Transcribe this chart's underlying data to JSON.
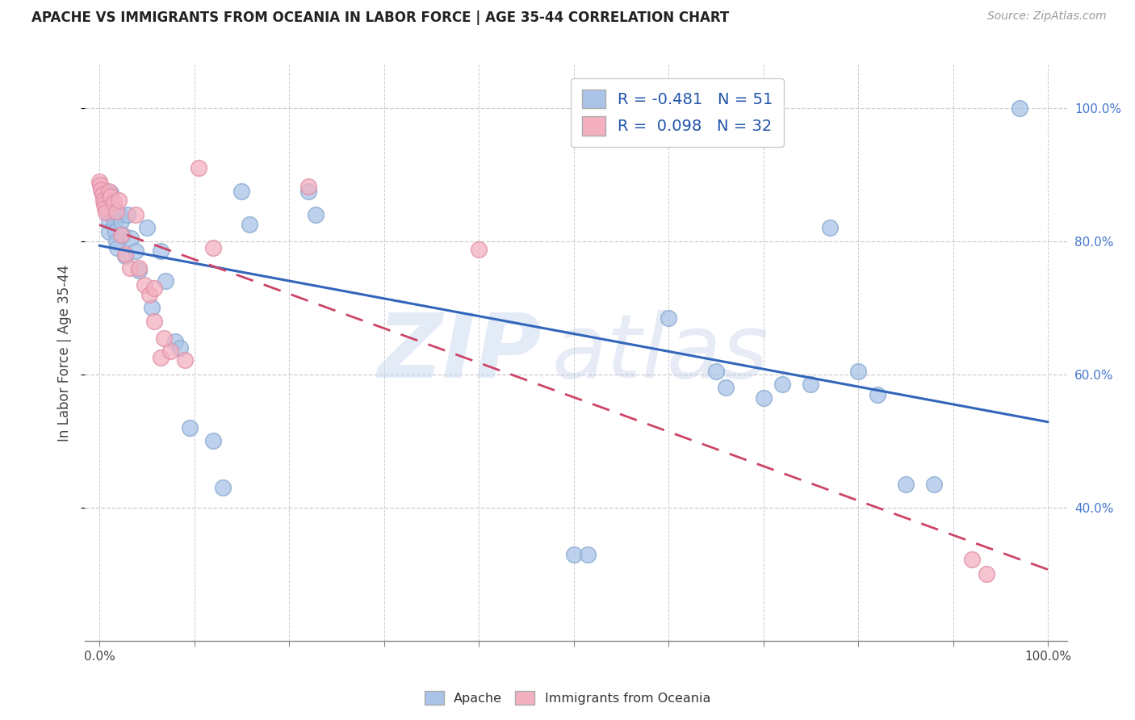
{
  "title": "APACHE VS IMMIGRANTS FROM OCEANIA IN LABOR FORCE | AGE 35-44 CORRELATION CHART",
  "source": "Source: ZipAtlas.com",
  "ylabel": "In Labor Force | Age 35-44",
  "legend_R1": "R = -0.481",
  "legend_N1": "N = 51",
  "legend_R2": "R =  0.098",
  "legend_N2": "N = 32",
  "legend_label1": "Apache",
  "legend_label2": "Immigrants from Oceania",
  "apache_color": "#aac4e8",
  "apache_edge_color": "#88aad0",
  "oceania_color": "#f4b0c0",
  "oceania_edge_color": "#e090a8",
  "apache_line_color": "#3366bb",
  "oceania_line_color": "#cc4466",
  "watermark_zip": "ZIP",
  "watermark_atlas": "atlas",
  "xlim": [
    -0.015,
    1.02
  ],
  "ylim": [
    0.2,
    1.065
  ],
  "x_ticks": [
    0.0,
    0.1,
    0.2,
    0.3,
    0.4,
    0.5,
    0.6,
    0.7,
    0.8,
    0.9,
    1.0
  ],
  "y_ticks": [
    0.4,
    0.6,
    0.8,
    1.0
  ],
  "apache_x": [
    0.003,
    0.005,
    0.006,
    0.007,
    0.008,
    0.009,
    0.01,
    0.01,
    0.012,
    0.013,
    0.014,
    0.015,
    0.016,
    0.017,
    0.018,
    0.019,
    0.021,
    0.023,
    0.025,
    0.027,
    0.03,
    0.033,
    0.038,
    0.042,
    0.05,
    0.055,
    0.065,
    0.07,
    0.08,
    0.085,
    0.095,
    0.12,
    0.13,
    0.15,
    0.158,
    0.22,
    0.228,
    0.5,
    0.515,
    0.6,
    0.65,
    0.66,
    0.7,
    0.72,
    0.75,
    0.77,
    0.8,
    0.82,
    0.85,
    0.88,
    0.97
  ],
  "apache_y": [
    0.875,
    0.875,
    0.875,
    0.86,
    0.855,
    0.845,
    0.83,
    0.815,
    0.872,
    0.862,
    0.85,
    0.84,
    0.828,
    0.815,
    0.8,
    0.79,
    0.84,
    0.83,
    0.81,
    0.778,
    0.84,
    0.805,
    0.785,
    0.756,
    0.82,
    0.7,
    0.785,
    0.74,
    0.65,
    0.64,
    0.52,
    0.5,
    0.43,
    0.875,
    0.825,
    0.875,
    0.84,
    0.33,
    0.33,
    0.685,
    0.605,
    0.58,
    0.565,
    0.585,
    0.585,
    0.82,
    0.605,
    0.57,
    0.435,
    0.435,
    1.0
  ],
  "oceania_x": [
    0.0,
    0.001,
    0.002,
    0.003,
    0.004,
    0.005,
    0.006,
    0.007,
    0.01,
    0.012,
    0.015,
    0.018,
    0.02,
    0.023,
    0.027,
    0.032,
    0.038,
    0.042,
    0.048,
    0.053,
    0.058,
    0.065,
    0.075,
    0.09,
    0.105,
    0.12,
    0.22,
    0.4,
    0.92,
    0.935,
    0.058,
    0.068
  ],
  "oceania_y": [
    0.89,
    0.885,
    0.878,
    0.87,
    0.862,
    0.856,
    0.85,
    0.843,
    0.875,
    0.868,
    0.858,
    0.845,
    0.862,
    0.81,
    0.78,
    0.76,
    0.84,
    0.76,
    0.735,
    0.72,
    0.73,
    0.625,
    0.635,
    0.622,
    0.91,
    0.79,
    0.882,
    0.788,
    0.322,
    0.3,
    0.68,
    0.655
  ]
}
